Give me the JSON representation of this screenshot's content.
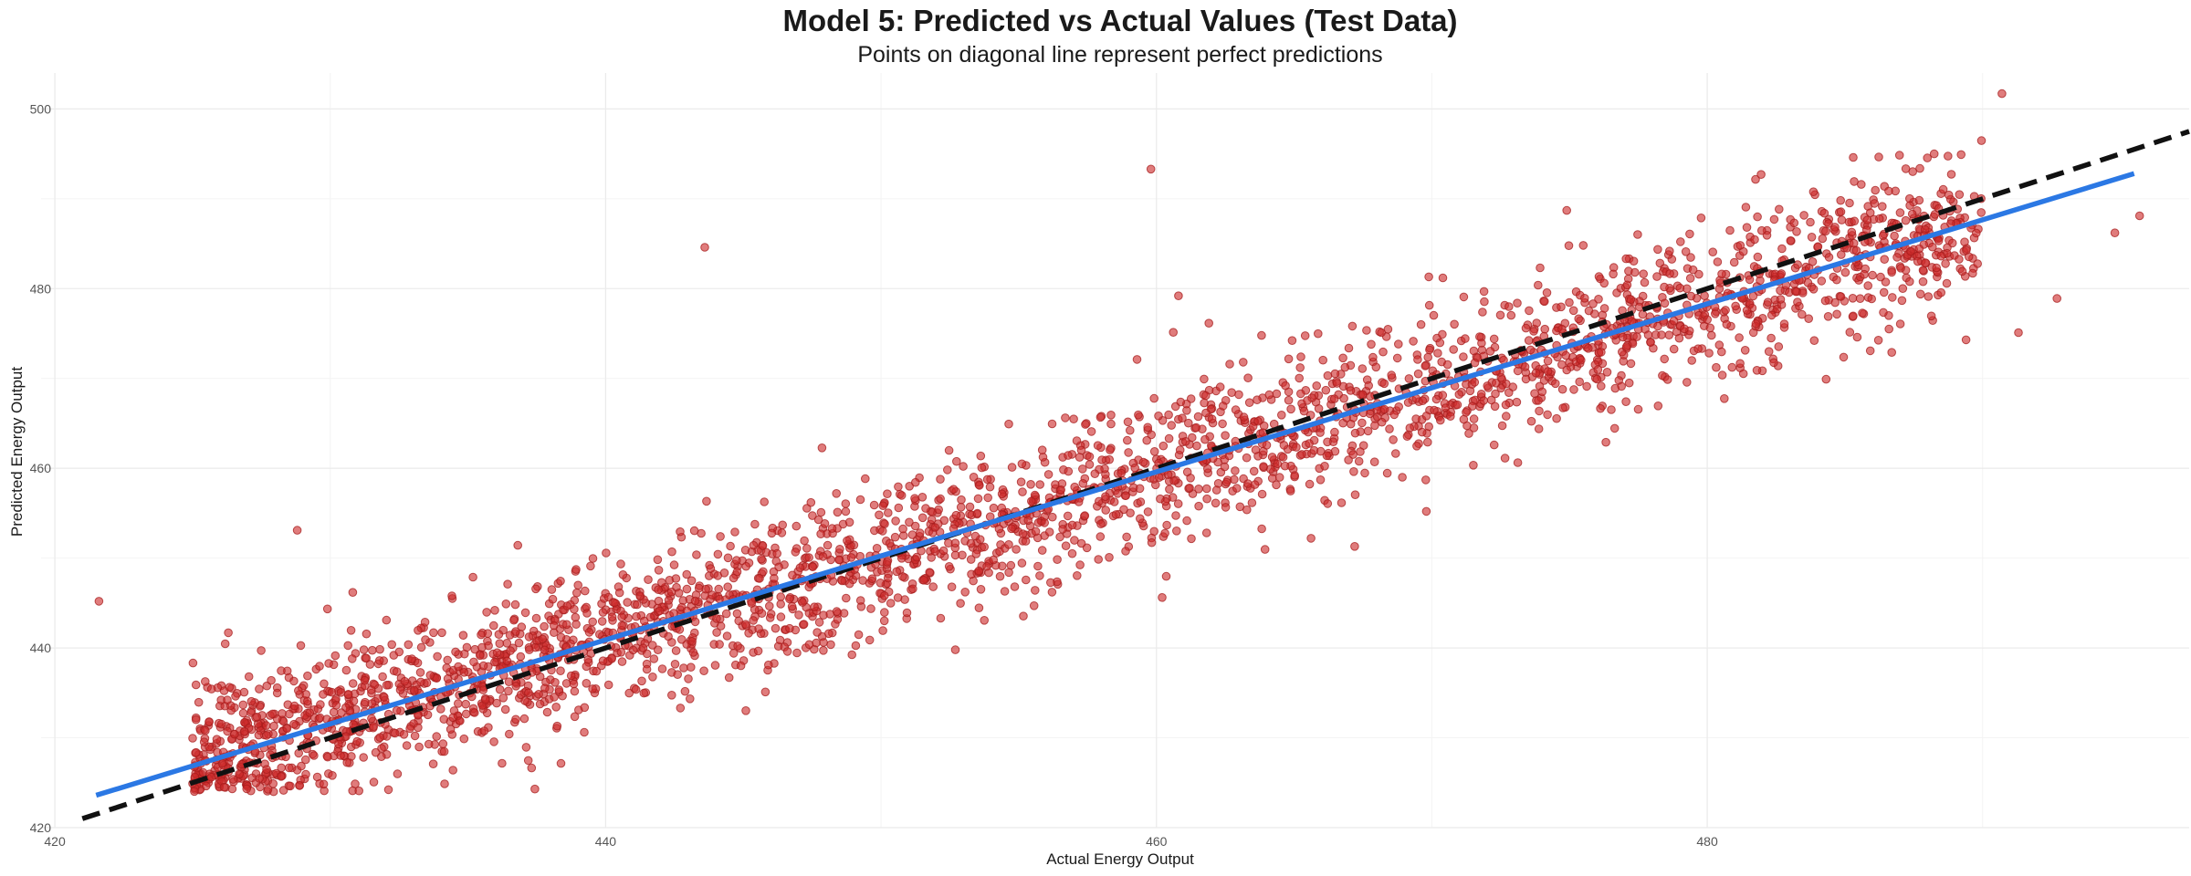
{
  "chart_data": {
    "type": "scatter",
    "title": "Model 5: Predicted vs Actual Values (Test Data)",
    "subtitle": "Points on diagonal line represent perfect predictions",
    "xlabel": "Actual Energy Output",
    "ylabel": "Predicted Energy Output",
    "xlim": [
      419.5,
      497.5
    ],
    "ylim": [
      420.0,
      504.0
    ],
    "x_ticks": [
      420,
      440,
      460,
      480
    ],
    "y_ticks": [
      420,
      440,
      460,
      480,
      500
    ],
    "grid": true,
    "legend": "none",
    "point_color": "#cd2b2b",
    "reference_line": {
      "name": "",
      "style": "dashed",
      "color": "#111111",
      "slope": 1,
      "intercept": 0
    },
    "fit_line": {
      "name": "",
      "style": "solid",
      "color": "#2b78e4",
      "x": [
        421.5,
        495.5
      ],
      "y": [
        423.6,
        492.8
      ]
    },
    "outliers": [
      {
        "x": 421.6,
        "y": 445.2
      },
      {
        "x": 428.8,
        "y": 453.1
      },
      {
        "x": 426.3,
        "y": 441.7
      },
      {
        "x": 443.6,
        "y": 484.6
      },
      {
        "x": 459.8,
        "y": 493.3
      },
      {
        "x": 460.8,
        "y": 479.2
      },
      {
        "x": 467.2,
        "y": 451.3
      },
      {
        "x": 469.8,
        "y": 455.2
      },
      {
        "x": 452.7,
        "y": 439.8
      },
      {
        "x": 470.4,
        "y": 481.2
      },
      {
        "x": 490.7,
        "y": 501.7
      },
      {
        "x": 485.3,
        "y": 494.6
      },
      {
        "x": 489.4,
        "y": 474.3
      },
      {
        "x": 491.3,
        "y": 475.1
      },
      {
        "x": 492.7,
        "y": 478.9
      },
      {
        "x": 494.8,
        "y": 486.2
      },
      {
        "x": 495.7,
        "y": 488.1
      },
      {
        "x": 486.6,
        "y": 475.5
      },
      {
        "x": 474.9,
        "y": 488.7
      },
      {
        "x": 445.8,
        "y": 435.1
      }
    ],
    "main_cloud": {
      "count": 3000,
      "x_range": [
        425.0,
        490.0
      ],
      "relation": "y ≈ 0.935·x + 29.5",
      "spread_sd": 4.2
    }
  }
}
